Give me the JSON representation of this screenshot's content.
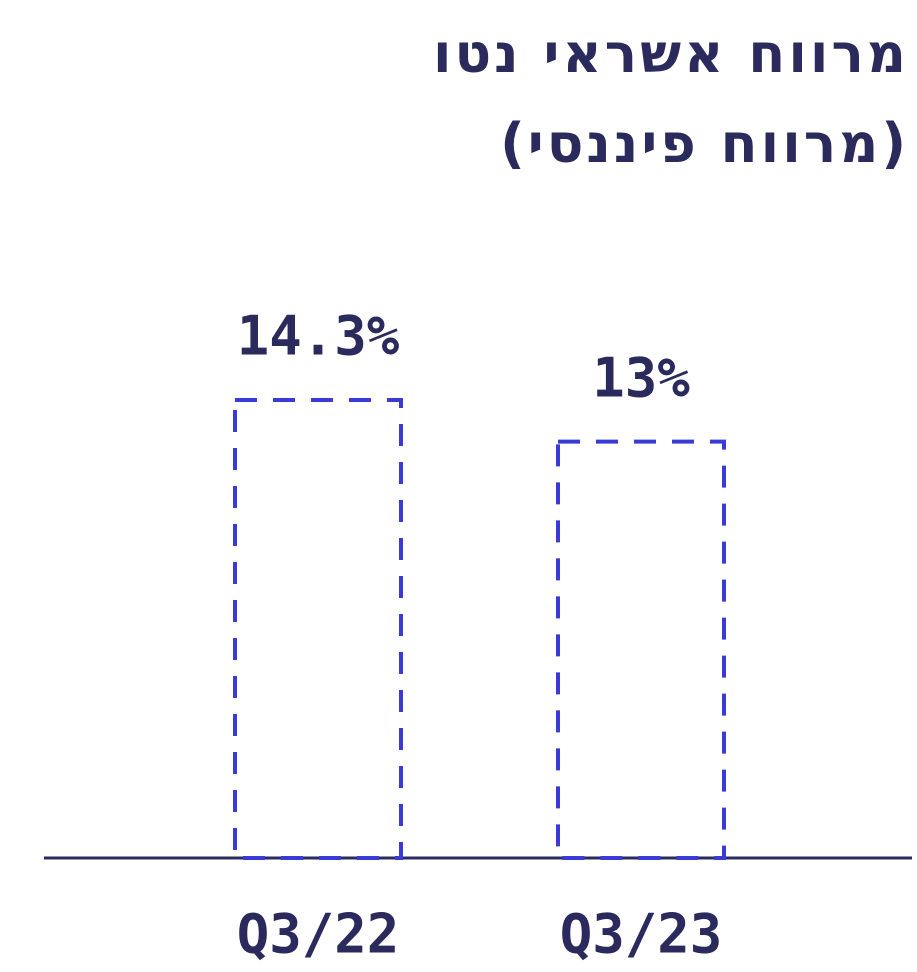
{
  "chart_data": {
    "type": "bar",
    "title": "מרווח אשראי נטו",
    "subtitle": "(מרווח פיננסי)",
    "categories": [
      "Q3/22",
      "Q3/23"
    ],
    "values": [
      14.3,
      13
    ],
    "value_labels": [
      "14.3%",
      "13%"
    ],
    "color": "#3a3ad6"
  }
}
